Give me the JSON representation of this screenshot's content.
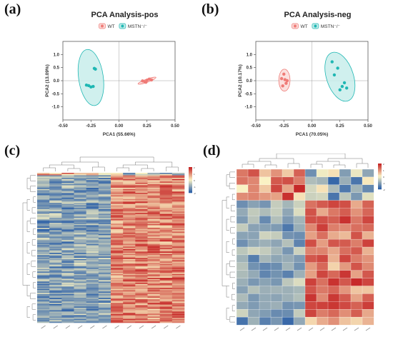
{
  "labels": {
    "a": "(a)",
    "b": "(b)",
    "c": "(c)",
    "d": "(d)"
  },
  "colors": {
    "wt": "#ef7b77",
    "wt_fill": "#fbd8d6",
    "mstn": "#1fb7b3",
    "mstn_fill": "#c4ecea",
    "heat_high": "#c62828",
    "heat_mid": "#fbf3c4",
    "heat_low": "#2f62a8"
  },
  "chart_data": [
    {
      "type": "scatter",
      "title": "PCA Analysis-pos",
      "xlabel": "PCA1 (55.66%)",
      "ylabel": "PCA2 (13.09%)",
      "xlim": [
        -0.5,
        0.5
      ],
      "ylim": [
        -1.5,
        1.5
      ],
      "xticks": [
        "-0.50",
        "-0.25",
        "0.00",
        "0.25",
        "0.50"
      ],
      "yticks": [
        "1.0",
        "0.5",
        "0.0",
        "-0.5",
        "-1.0"
      ],
      "legend": [
        "WT",
        "MSTN⁻/⁻"
      ],
      "legend_position": "top",
      "series": [
        {
          "name": "WT",
          "points": [
            [
              0.21,
              -0.01
            ],
            [
              0.23,
              -0.04
            ],
            [
              0.25,
              0.02
            ],
            [
              0.27,
              0.06
            ],
            [
              0.24,
              -0.06
            ],
            [
              0.29,
              0.03
            ]
          ],
          "ellipse": {
            "cx": 0.25,
            "cy": 0.0,
            "rx": 0.085,
            "ry": 0.06,
            "angle_deg": -20
          }
        },
        {
          "name": "MSTN⁻/⁻",
          "points": [
            [
              -0.22,
              0.47
            ],
            [
              -0.21,
              0.44
            ],
            [
              -0.27,
              -0.19
            ],
            [
              -0.29,
              -0.17
            ],
            [
              -0.23,
              -0.22
            ],
            [
              -0.25,
              -0.24
            ]
          ],
          "ellipse": {
            "cx": -0.25,
            "cy": 0.12,
            "rx": 0.11,
            "ry": 1.08,
            "angle_deg": -8
          }
        }
      ]
    },
    {
      "type": "scatter",
      "title": "PCA Analysis-neg",
      "xlabel": "PCA1 (70.05%)",
      "ylabel": "PCA2 (10.17%)",
      "xlim": [
        -0.5,
        0.5
      ],
      "ylim": [
        -1.5,
        1.5
      ],
      "xticks": [
        "-0.50",
        "-0.25",
        "0.00",
        "0.25",
        "0.50"
      ],
      "yticks": [
        "1.0",
        "0.5",
        "0.0",
        "-0.5",
        "-1.0"
      ],
      "legend": [
        "WT",
        "MSTN⁻/⁻"
      ],
      "legend_position": "top",
      "series": [
        {
          "name": "WT",
          "points": [
            [
              -0.25,
              0.25
            ],
            [
              -0.27,
              0.08
            ],
            [
              -0.24,
              0.04
            ],
            [
              -0.23,
              -0.1
            ],
            [
              -0.26,
              -0.2
            ],
            [
              -0.22,
              0.0
            ]
          ],
          "ellipse": {
            "cx": -0.245,
            "cy": 0.02,
            "rx": 0.05,
            "ry": 0.42,
            "angle_deg": 0
          }
        },
        {
          "name": "MSTN⁻/⁻",
          "points": [
            [
              0.18,
              0.72
            ],
            [
              0.23,
              0.48
            ],
            [
              0.2,
              0.22
            ],
            [
              0.29,
              -0.08
            ],
            [
              0.27,
              -0.22
            ],
            [
              0.25,
              -0.35
            ],
            [
              0.31,
              -0.28
            ]
          ],
          "ellipse": {
            "cx": 0.25,
            "cy": 0.15,
            "rx": 0.12,
            "ry": 0.97,
            "angle_deg": -18
          }
        }
      ]
    },
    {
      "type": "heatmap",
      "rows": 120,
      "columns": [
        "C_A1",
        "C_A2",
        "C_A3",
        "C_A4",
        "C_A5",
        "C_A6",
        "C_B1",
        "C_B2",
        "C_B3",
        "C_B4",
        "C_B5",
        "C_B6"
      ],
      "colorbar_ticks": [
        "2",
        "1",
        "0",
        "-1",
        "-2"
      ]
    },
    {
      "type": "heatmap",
      "rows": 20,
      "columns": [
        "D_A1",
        "D_A2",
        "D_A3",
        "D_A4",
        "D_A5",
        "D_A6",
        "D_B1",
        "D_B2",
        "D_B3",
        "D_B4",
        "D_B5",
        "D_B6"
      ],
      "colorbar_ticks": [
        "2",
        "1",
        "0",
        "-1",
        "-2"
      ]
    }
  ]
}
